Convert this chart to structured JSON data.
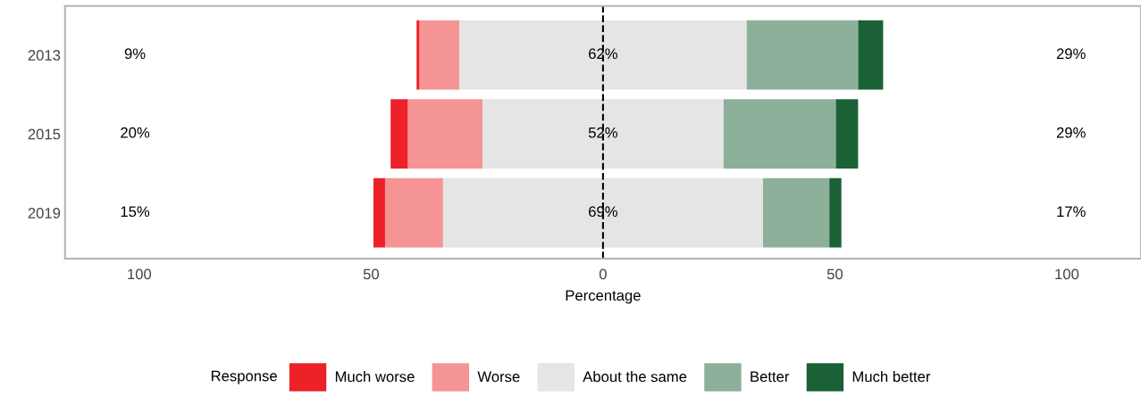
{
  "chart_data": {
    "type": "bar",
    "orientation": "horizontal",
    "stacked": true,
    "categories": [
      "2013",
      "2015",
      "2019"
    ],
    "series": [
      {
        "name": "About the same",
        "color": "#e5e5e5",
        "values": [
          -31,
          -26,
          -34.5
        ]
      },
      {
        "name": "Worse",
        "color": "#f59494",
        "values": [
          -8.6,
          -16.1,
          -12.5
        ]
      },
      {
        "name": "Much worse",
        "color": "#ed2229",
        "values": [
          -0.6,
          -3.7,
          -2.5
        ]
      },
      {
        "color": "#e5e5e5",
        "values": [
          31,
          26,
          34.5
        ]
      },
      {
        "name": "Better",
        "color": "#8db09a",
        "values": [
          24,
          24.2,
          14.3
        ]
      },
      {
        "name": "Much better",
        "color": "#1b6136",
        "values": [
          5.4,
          4.8,
          2.6
        ]
      }
    ],
    "xlabel": "Percentage",
    "legend_title": "Response",
    "legend": "bottom",
    "xlim": [
      -116,
      116
    ],
    "xticks": [
      {
        "value": -100,
        "label": "100"
      },
      {
        "value": -50,
        "label": "50"
      },
      0,
      50,
      100
    ],
    "ref_lines": [
      {
        "axis": "x",
        "value": 0,
        "color": "#000000",
        "line_style": "dashed"
      }
    ],
    "annotations": [
      "9%",
      "62%",
      "29%",
      "20%",
      "52%",
      "29%",
      "15%",
      "69%",
      "17%"
    ]
  }
}
